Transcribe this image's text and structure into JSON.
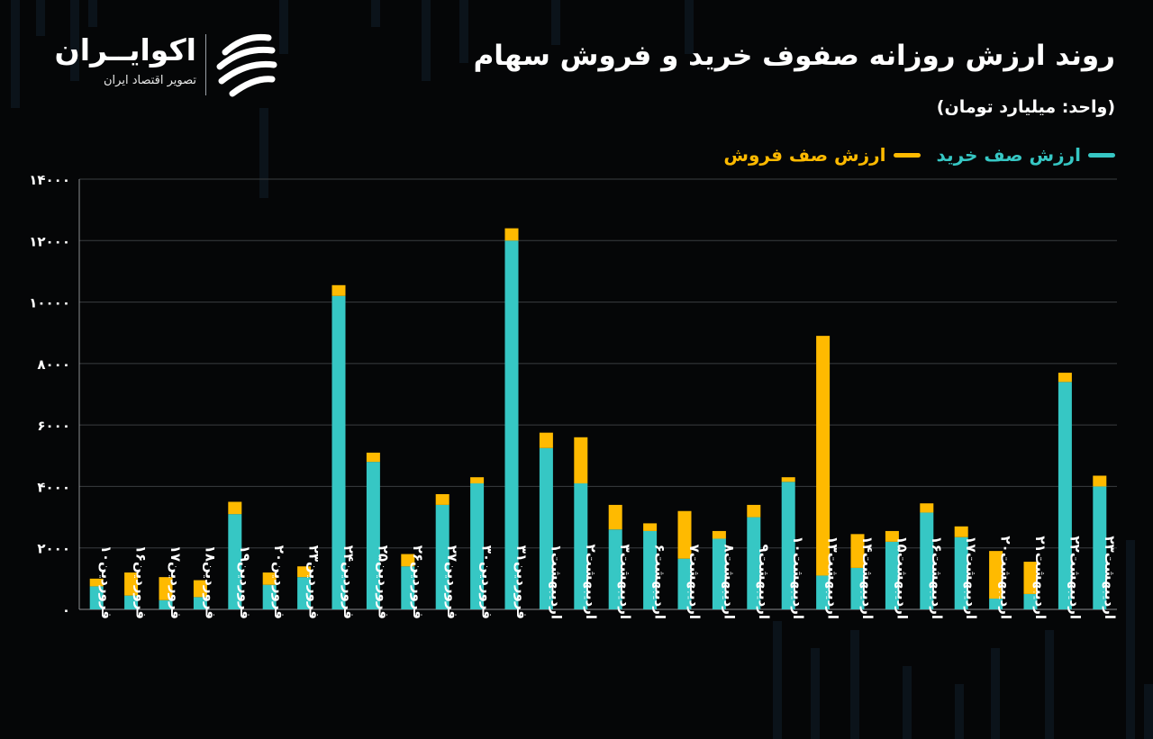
{
  "header": {
    "title": "روند ارزش روزانه صفوف خرید و فروش سهام",
    "unit": "(واحد: میلیارد تومان)"
  },
  "brand": {
    "name": "اکوایــران",
    "tagline": "تصویر اقتصاد ایران"
  },
  "legend": {
    "buy_label": "ارزش صف خرید",
    "sell_label": "ارزش صف فروش"
  },
  "colors": {
    "buy": "#36c7c4",
    "sell": "#ffba00",
    "grid": "#3a3d40",
    "background": "#050607"
  },
  "chart_data": {
    "type": "bar",
    "stacked": true,
    "ylim": [
      0,
      14000
    ],
    "yticks": [
      {
        "value": 0,
        "label": "۰"
      },
      {
        "value": 2000,
        "label": "۲۰۰۰"
      },
      {
        "value": 4000,
        "label": "۴۰۰۰"
      },
      {
        "value": 6000,
        "label": "۶۰۰۰"
      },
      {
        "value": 8000,
        "label": "۸۰۰۰"
      },
      {
        "value": 10000,
        "label": "۱۰۰۰۰"
      },
      {
        "value": 12000,
        "label": "۱۲۰۰۰"
      },
      {
        "value": 14000,
        "label": "۱۴۰۰۰"
      }
    ],
    "grid": true,
    "legend_position": "top-right",
    "categories": [
      "فروردین۱۰",
      "فروردین۱۶",
      "فروردین۱۷",
      "فروردین۱۸",
      "فروردین۱۹",
      "فروردین۲۰",
      "فروردین۲۳",
      "فروردین۲۴",
      "فروردین۲۵",
      "فروردین۲۶",
      "فروردین۲۷",
      "فروردین۳۰",
      "فروردین۳۱",
      "اردیبهشت۱",
      "اردیبهشت۲",
      "اردیبهشت۳",
      "اردیبهشت۶",
      "اردیبهشت۷",
      "اردیبهشت۸",
      "اردیبهشت۹",
      "اردیبهشت۱۰",
      "اردیبهشت۱۳",
      "اردیبهشت۱۴",
      "اردیبهشت۱۵",
      "اردیبهشت۱۶",
      "اردیبهشت۱۷",
      "اردیبهشت۲۰",
      "اردیبهشت۲۱",
      "اردیبهشت۲۲",
      "اردیبهشت۲۳"
    ],
    "series": [
      {
        "name": "ارزش صف خرید",
        "values": [
          750,
          450,
          300,
          400,
          3100,
          800,
          1050,
          10200,
          4800,
          1400,
          3400,
          4100,
          12000,
          5250,
          4100,
          2600,
          2550,
          1650,
          2300,
          3000,
          4150,
          1100,
          1350,
          2200,
          3150,
          2350,
          350,
          500,
          7400,
          4000
        ]
      },
      {
        "name": "ارزش صف فروش",
        "values": [
          250,
          750,
          750,
          550,
          400,
          400,
          350,
          350,
          300,
          400,
          350,
          200,
          400,
          500,
          1500,
          800,
          250,
          1550,
          250,
          400,
          150,
          7800,
          1100,
          350,
          300,
          350,
          1550,
          1050,
          300,
          350
        ]
      }
    ]
  }
}
